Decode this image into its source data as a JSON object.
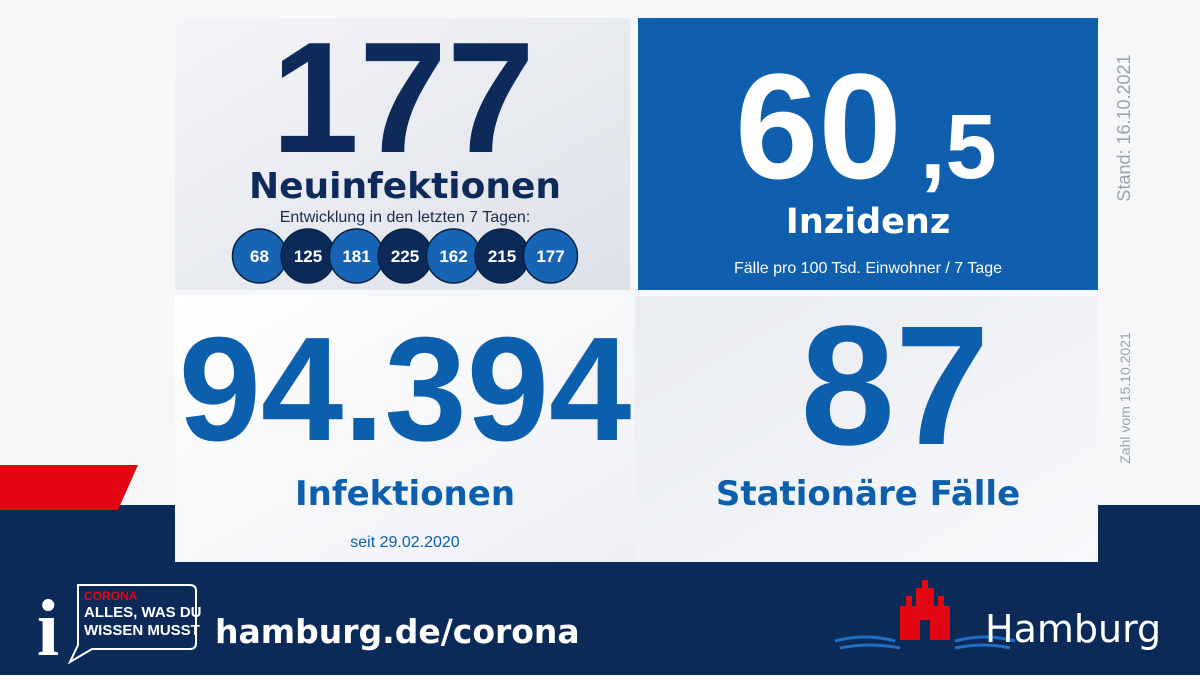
{
  "new_infections": {
    "value": "177",
    "label": "Neuinfektionen",
    "trend_label": "Entwicklung in den letzten 7 Tagen:",
    "trend": [
      "68",
      "125",
      "181",
      "225",
      "162",
      "215",
      "177"
    ]
  },
  "incidence": {
    "integer": "60",
    "decimal": ",5",
    "label": "Inzidenz",
    "note": "Fälle pro 100 Tsd. Einwohner / 7 Tage"
  },
  "total_infections": {
    "value": "94.394",
    "label": "Infektionen",
    "note": "seit 29.02.2020"
  },
  "hospitalized": {
    "value": "87",
    "label": "Stationäre Fälle"
  },
  "side_notes": {
    "status": "Stand: 16.10.2021",
    "count_date": "Zahl vom 15.10.2021"
  },
  "footer": {
    "info_icon": "i",
    "badge_line1": "CORONA",
    "badge_line2": "ALLES, WAS DU",
    "badge_line3": "WISSEN MUSST",
    "url": "hamburg.de/corona",
    "city": "Hamburg"
  }
}
